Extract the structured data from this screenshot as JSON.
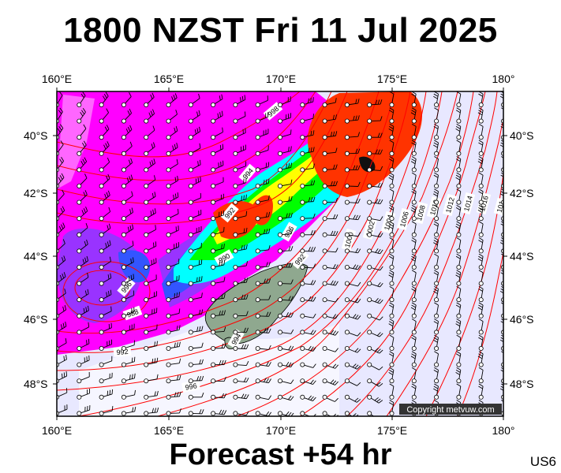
{
  "title": "1800 NZST Fri 11 Jul 2025",
  "subtitle": "Forecast +54 hr",
  "map_code": "US6",
  "copyright": "Copyright metvuw.com",
  "axes": {
    "longitudes": [
      "160°E",
      "165°E",
      "170°E",
      "175°E",
      "180°"
    ],
    "latitudes": [
      "40°S",
      "42°S",
      "44°S",
      "46°S",
      "48°S"
    ]
  },
  "isobar_labels": [
    "998",
    "994",
    "992",
    "990",
    "996",
    "992",
    "996",
    "988",
    "992",
    "994",
    "996",
    "1000",
    "1002",
    "1004",
    "1006",
    "1008",
    "1010",
    "1012",
    "1014",
    "1016",
    "101"
  ],
  "colors": {
    "isobar": "#ff0000",
    "rain_light": "#e8e8ff",
    "rain_magenta": "#ff00ff",
    "rain_purple": "#9933ff",
    "rain_blue": "#3355ff",
    "rain_cyan": "#00ffff",
    "rain_green": "#00ff00",
    "rain_yellow": "#ffff00",
    "rain_red": "#ff3300",
    "land": "#8fa88f"
  }
}
